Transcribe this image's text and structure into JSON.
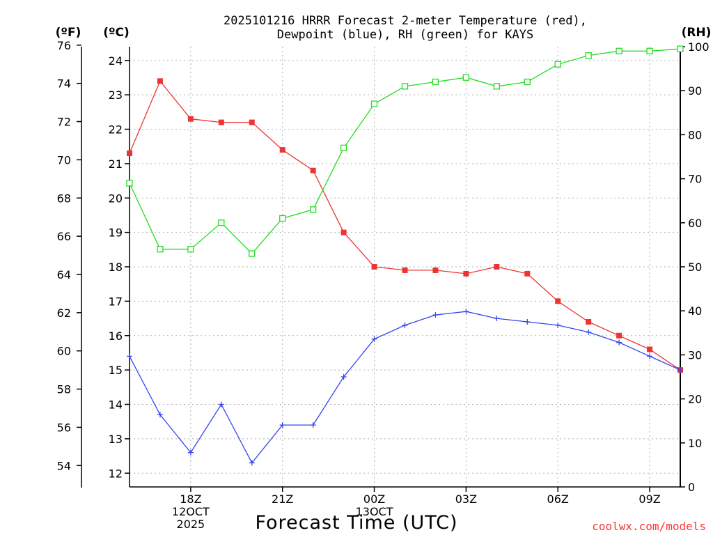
{
  "chart_data": {
    "type": "line",
    "title_lines": [
      "2025101216 HRRR Forecast 2-meter Temperature (red),",
      "Dewpoint (blue), RH (green) for KAYS"
    ],
    "units": {
      "fahrenheit": "(ºF)",
      "celsius": "(ºC)",
      "rh": "(RH)"
    },
    "xlabel": "Forecast Time (UTC)",
    "credit": "coolwx.com/models",
    "x_hours": [
      16,
      17,
      18,
      19,
      20,
      21,
      22,
      23,
      24,
      25,
      26,
      27,
      28,
      29,
      30,
      31,
      32,
      33,
      34
    ],
    "xlim": [
      16,
      34
    ],
    "x_ticks": [
      {
        "hour": 18,
        "lines": [
          "18Z",
          "12OCT",
          "2025"
        ]
      },
      {
        "hour": 21,
        "lines": [
          "21Z"
        ]
      },
      {
        "hour": 24,
        "lines": [
          "00Z",
          "13OCT"
        ]
      },
      {
        "hour": 27,
        "lines": [
          "03Z"
        ]
      },
      {
        "hour": 30,
        "lines": [
          "06Z"
        ]
      },
      {
        "hour": 33,
        "lines": [
          "09Z"
        ]
      }
    ],
    "celsius_axis": {
      "range": [
        11.6,
        24.4
      ],
      "ticks": [
        12,
        13,
        14,
        15,
        16,
        17,
        18,
        19,
        20,
        21,
        22,
        23,
        24
      ]
    },
    "fahrenheit_axis": {
      "ticks": [
        54,
        56,
        58,
        60,
        62,
        64,
        66,
        68,
        70,
        72,
        74,
        76
      ]
    },
    "rh_axis": {
      "range": [
        0,
        100
      ],
      "ticks": [
        0,
        10,
        20,
        30,
        40,
        50,
        60,
        70,
        80,
        90,
        100
      ]
    },
    "series": [
      {
        "name": "2-meter Temperature",
        "axis": "celsius",
        "color": "#ee3333",
        "marker": "filled-square",
        "values": [
          21.3,
          23.4,
          22.3,
          22.2,
          22.2,
          21.4,
          20.8,
          19.0,
          18.0,
          17.9,
          17.9,
          17.8,
          18.0,
          17.8,
          17.0,
          16.4,
          16.0,
          15.6,
          15.0
        ]
      },
      {
        "name": "Dewpoint",
        "axis": "celsius",
        "color": "#3344ee",
        "marker": "plus",
        "values": [
          15.4,
          13.7,
          12.6,
          14.0,
          12.3,
          13.4,
          13.4,
          14.8,
          15.9,
          16.3,
          16.6,
          16.7,
          16.5,
          16.4,
          16.3,
          16.1,
          15.8,
          15.4,
          15.0
        ]
      },
      {
        "name": "RH",
        "axis": "rh",
        "color": "#22dd22",
        "marker": "open-square",
        "values": [
          69,
          54,
          54,
          60,
          53,
          61,
          63,
          77,
          87,
          91,
          92,
          93,
          91,
          92,
          96,
          98,
          99,
          99,
          99.5
        ]
      }
    ],
    "grid": true
  }
}
